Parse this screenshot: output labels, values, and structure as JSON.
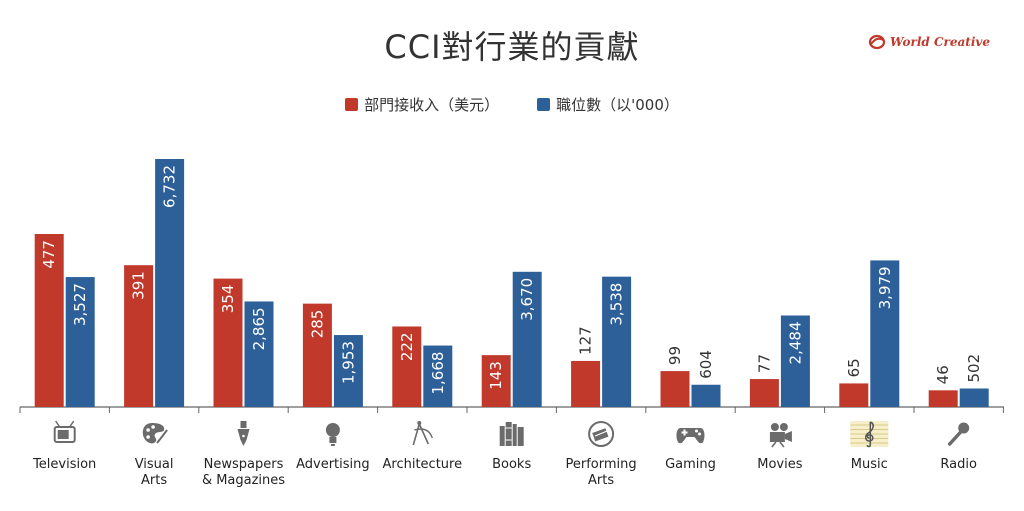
{
  "brand": {
    "name": "World Creative"
  },
  "chart_data": {
    "type": "bar",
    "title": "CCI對行業的貢獻",
    "categories": [
      "Television",
      "Visual\nArts",
      "Newspapers\n& Magazines",
      "Advertising",
      "Architecture",
      "Books",
      "Performing\nArts",
      "Gaming",
      "Movies",
      "Music",
      "Radio"
    ],
    "icons": [
      "tv-icon",
      "palette-icon",
      "pen-nib-icon",
      "lightbulb-icon",
      "compass-icon",
      "books-icon",
      "theater-masks-icon",
      "gamepad-icon",
      "film-camera-icon",
      "music-staff-icon",
      "microphone-icon"
    ],
    "series": [
      {
        "name": "部門接收入（美元）",
        "color": "#c0392b",
        "values": [
          477,
          391,
          354,
          285,
          222,
          143,
          127,
          99,
          77,
          65,
          46
        ],
        "labels": [
          "477",
          "391",
          "354",
          "285",
          "222",
          "143",
          "127",
          "99",
          "77",
          "65",
          "46"
        ]
      },
      {
        "name": "職位數（以'000）",
        "color": "#2d5f99",
        "values": [
          3527,
          6732,
          2865,
          1953,
          1668,
          3670,
          3538,
          604,
          2484,
          3979,
          502
        ],
        "labels": [
          "3,527",
          "6,732",
          "2,865",
          "1,953",
          "1,668",
          "3,670",
          "3,538",
          "604",
          "2,484",
          "3,979",
          "502"
        ]
      }
    ],
    "legend_position": "top-center",
    "grid": false
  }
}
